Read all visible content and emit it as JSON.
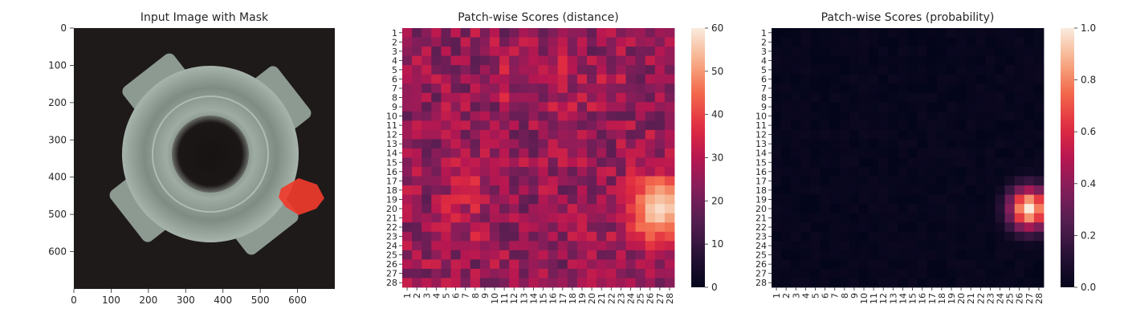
{
  "chart_data": [
    {
      "type": "image",
      "title": "Input Image with Mask",
      "xlabel": "",
      "ylabel": "",
      "xlim": [
        0,
        700
      ],
      "ylim": [
        700,
        0
      ],
      "x_ticks": [
        0,
        100,
        200,
        300,
        400,
        500,
        600
      ],
      "y_ticks": [
        0,
        100,
        200,
        300,
        400,
        500,
        600
      ],
      "image_subject": "top view of a grey metal nut with four lugs on a dark background",
      "mask": {
        "color": "#ef3b2c",
        "region": "lower-right edge of the nut",
        "center": [
          600,
          450
        ]
      },
      "colors": {
        "background": "#1e1a1a",
        "metal": "#8f9d95",
        "mask": "#ef3b2c"
      }
    },
    {
      "type": "heatmap",
      "title": "Patch-wise Scores (distance)",
      "xlabel": "",
      "ylabel": "",
      "rows": 28,
      "cols": 28,
      "x_ticks": [
        "1",
        "2",
        "3",
        "4",
        "5",
        "6",
        "7",
        "8",
        "9",
        "10",
        "11",
        "12",
        "13",
        "14",
        "15",
        "16",
        "17",
        "18",
        "19",
        "20",
        "21",
        "22",
        "23",
        "24",
        "25",
        "26",
        "27",
        "28"
      ],
      "y_ticks": [
        "1",
        "2",
        "3",
        "4",
        "5",
        "6",
        "7",
        "8",
        "9",
        "10",
        "11",
        "12",
        "13",
        "14",
        "15",
        "16",
        "17",
        "18",
        "19",
        "20",
        "21",
        "22",
        "23",
        "24",
        "25",
        "26",
        "27",
        "28"
      ],
      "colorbar": {
        "min": 0,
        "max": 60,
        "ticks": [
          0,
          10,
          20,
          30,
          40,
          50,
          60
        ],
        "colormap": "rocket"
      },
      "background_range": [
        16,
        34
      ],
      "hotspot": {
        "row": 20,
        "col": 27,
        "peak": 58
      }
    },
    {
      "type": "heatmap",
      "title": "Patch-wise Scores (probability)",
      "xlabel": "",
      "ylabel": "",
      "rows": 28,
      "cols": 28,
      "x_ticks": [
        "1",
        "2",
        "3",
        "4",
        "5",
        "6",
        "7",
        "8",
        "9",
        "10",
        "11",
        "12",
        "13",
        "14",
        "15",
        "16",
        "17",
        "18",
        "19",
        "20",
        "21",
        "22",
        "23",
        "24",
        "25",
        "26",
        "27",
        "28"
      ],
      "y_ticks": [
        "1",
        "2",
        "3",
        "4",
        "5",
        "6",
        "7",
        "8",
        "9",
        "10",
        "11",
        "12",
        "13",
        "14",
        "15",
        "16",
        "17",
        "18",
        "19",
        "20",
        "21",
        "22",
        "23",
        "24",
        "25",
        "26",
        "27",
        "28"
      ],
      "colorbar": {
        "min": 0.0,
        "max": 1.0,
        "ticks": [
          "0.0",
          "0.2",
          "0.4",
          "0.6",
          "0.8",
          "1.0"
        ],
        "colormap": "rocket"
      },
      "background_range": [
        0.0,
        0.03
      ],
      "hotspot": {
        "row": 20,
        "col": 27,
        "peak": 1.0
      }
    }
  ]
}
